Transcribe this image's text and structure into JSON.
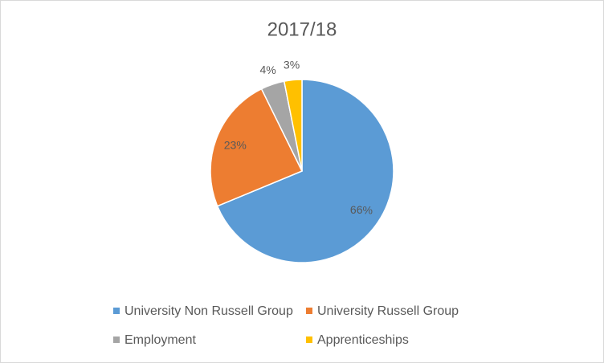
{
  "chart_data": {
    "type": "pie",
    "title": "2017/18",
    "categories": [
      "University Non Russell Group",
      "University Russell Group",
      "Employment",
      "Apprenticeships"
    ],
    "values": [
      66,
      23,
      4,
      3
    ],
    "colors": [
      "#5b9bd5",
      "#ed7d31",
      "#a5a5a5",
      "#ffc000"
    ],
    "legend": "bottom"
  }
}
